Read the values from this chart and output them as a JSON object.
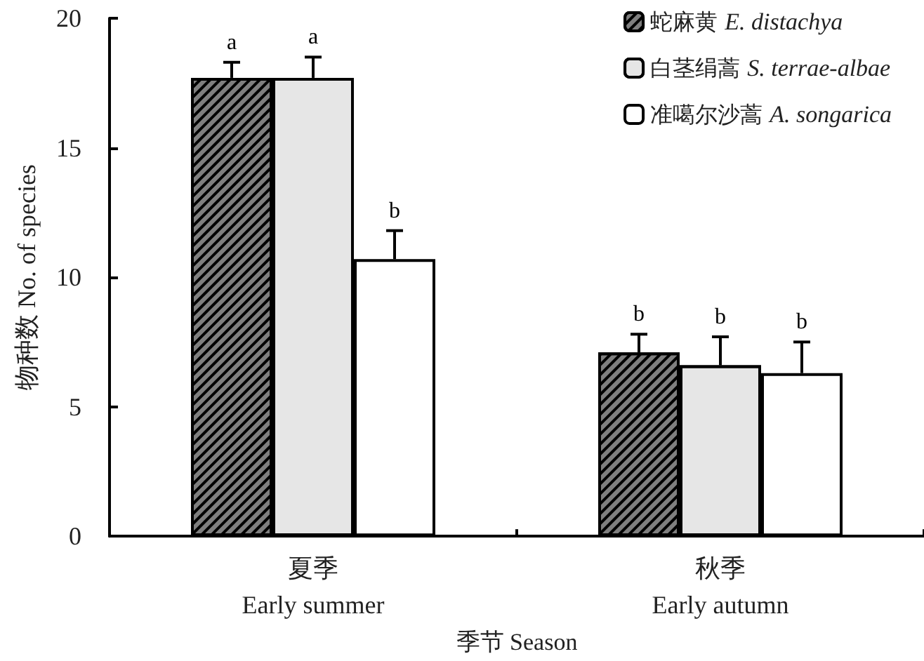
{
  "chart_data": {
    "type": "bar",
    "xlabel": "季节 Season",
    "ylabel": "物种数 No. of species",
    "categories": [
      "夏季\nEarly summer",
      "秋季\nEarly autumn"
    ],
    "series": [
      {
        "name": "蛇麻黄 E. distachya",
        "color": "#7f7f7f",
        "values": [
          17.7,
          7.1
        ],
        "errors": [
          [
            17.7,
            18.3
          ],
          [
            7.1,
            7.8
          ]
        ],
        "value_labels": [
          "a",
          "b"
        ]
      },
      {
        "name": "白茎绢蒿 S. terrae-albae",
        "color": "#e6e6e6",
        "values": [
          17.7,
          6.6
        ],
        "errors": [
          [
            17.7,
            18.5
          ],
          [
            6.6,
            7.7
          ]
        ],
        "value_labels": [
          "a",
          "b"
        ]
      },
      {
        "name": "准噶尔沙蒿 A. songarica",
        "color": "#ffffff",
        "values": [
          10.7,
          6.3
        ],
        "errors": [
          [
            10.7,
            11.8
          ],
          [
            6.3,
            7.5
          ]
        ],
        "value_labels": [
          "b",
          "b"
        ]
      }
    ],
    "ylim": [
      0,
      20
    ],
    "yticks": [
      0,
      5,
      10,
      15,
      20
    ],
    "grid": false,
    "legend": "top right"
  }
}
